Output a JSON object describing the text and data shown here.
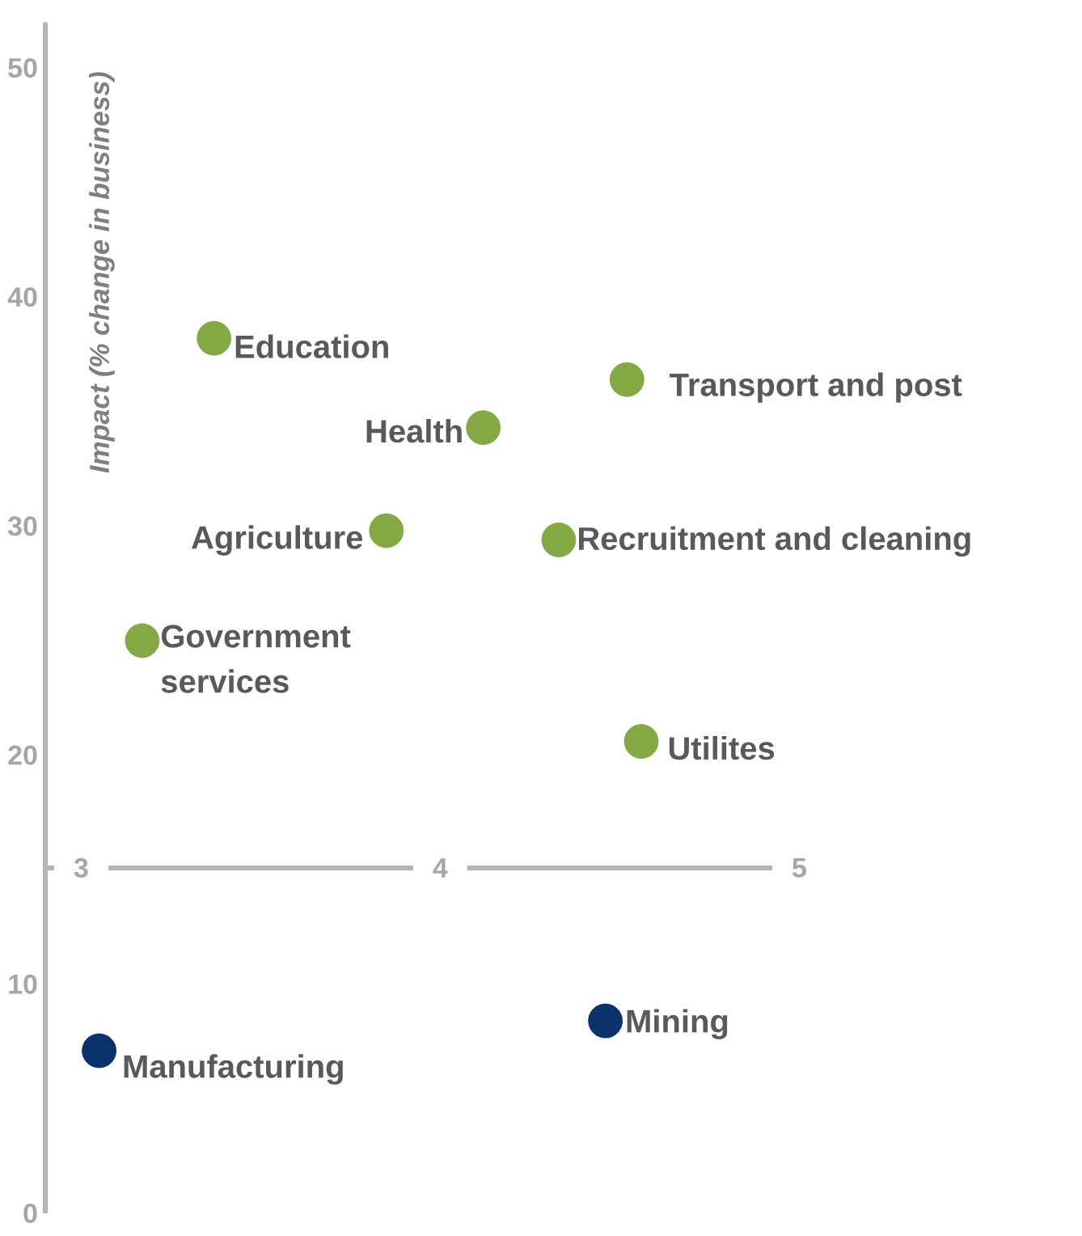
{
  "chart_data": {
    "type": "scatter",
    "ylabel": "Impact (% change in business)",
    "xlim": [
      2.9,
      5
    ],
    "xticks": [
      3,
      4,
      5
    ],
    "ylim": [
      0,
      52
    ],
    "yticks": [
      0,
      10,
      20,
      30,
      40,
      50
    ],
    "grid": false,
    "series": [
      {
        "color": "#84a844",
        "x": [
          3.37,
          4.12,
          4.52,
          3.85,
          4.33,
          3.17,
          4.56
        ],
        "values": [
          38.2,
          34.3,
          36.4,
          29.8,
          29.4,
          25.0,
          20.6
        ]
      },
      {
        "color": "#0b326b",
        "x": [
          3.05,
          4.46
        ],
        "values": [
          7.1,
          8.4
        ]
      }
    ],
    "annotations": [
      {
        "text": "Education",
        "x": 3.37,
        "y": 38.2
      },
      {
        "text": "Health",
        "x": 4.12,
        "y": 34.3
      },
      {
        "text": "Transport and post",
        "x": 4.52,
        "y": 36.4
      },
      {
        "text": "Agriculture",
        "x": 3.85,
        "y": 29.8
      },
      {
        "text": "Recruitment and cleaning",
        "x": 4.33,
        "y": 29.4
      },
      {
        "text": "Government services",
        "x": 3.17,
        "y": 25.0
      },
      {
        "text": "Utilites",
        "x": 4.56,
        "y": 20.6
      },
      {
        "text": "Manufacturing",
        "x": 3.05,
        "y": 7.1
      },
      {
        "text": "Mining",
        "x": 4.46,
        "y": 8.4
      }
    ]
  }
}
